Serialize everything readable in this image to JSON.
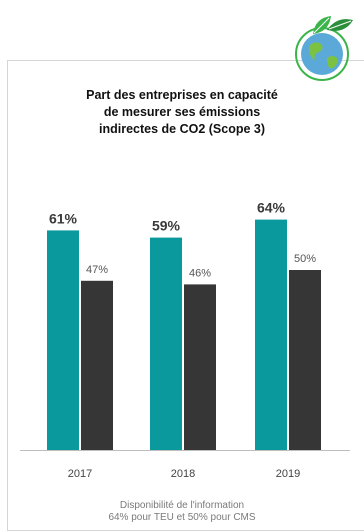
{
  "chart_data": {
    "type": "bar",
    "title_lines": [
      "Part des entreprises en capacité",
      "de mesurer ses émissions",
      "indirectes de CO2 (Scope 3)"
    ],
    "categories": [
      "2017",
      "2018",
      "2019"
    ],
    "series": [
      {
        "values": [
          61,
          59,
          64
        ],
        "labels": [
          "61%",
          "59%",
          "64%"
        ],
        "color": "#0a9a9e"
      },
      {
        "values": [
          47,
          46,
          50
        ],
        "labels": [
          "47%",
          "46%",
          "50%"
        ],
        "color": "#363636"
      }
    ],
    "ylim": [
      0,
      100
    ],
    "grid": false,
    "legend": "none"
  },
  "footer": {
    "line1": "Disponibilité de l'information",
    "line2": "64% pour TEU et 50% pour CMS"
  },
  "colors": {
    "axis": "#bdbdbd",
    "tick_text": "#444444",
    "label_primary": "#3a3a3a",
    "label_secondary": "#555555",
    "leaf": "#3bb54a",
    "leaf_dark": "#2a8f3a",
    "globe": "#5aa9d8",
    "land": "#7cc242"
  },
  "logo": {
    "icon": "globe-with-leaves-icon"
  }
}
